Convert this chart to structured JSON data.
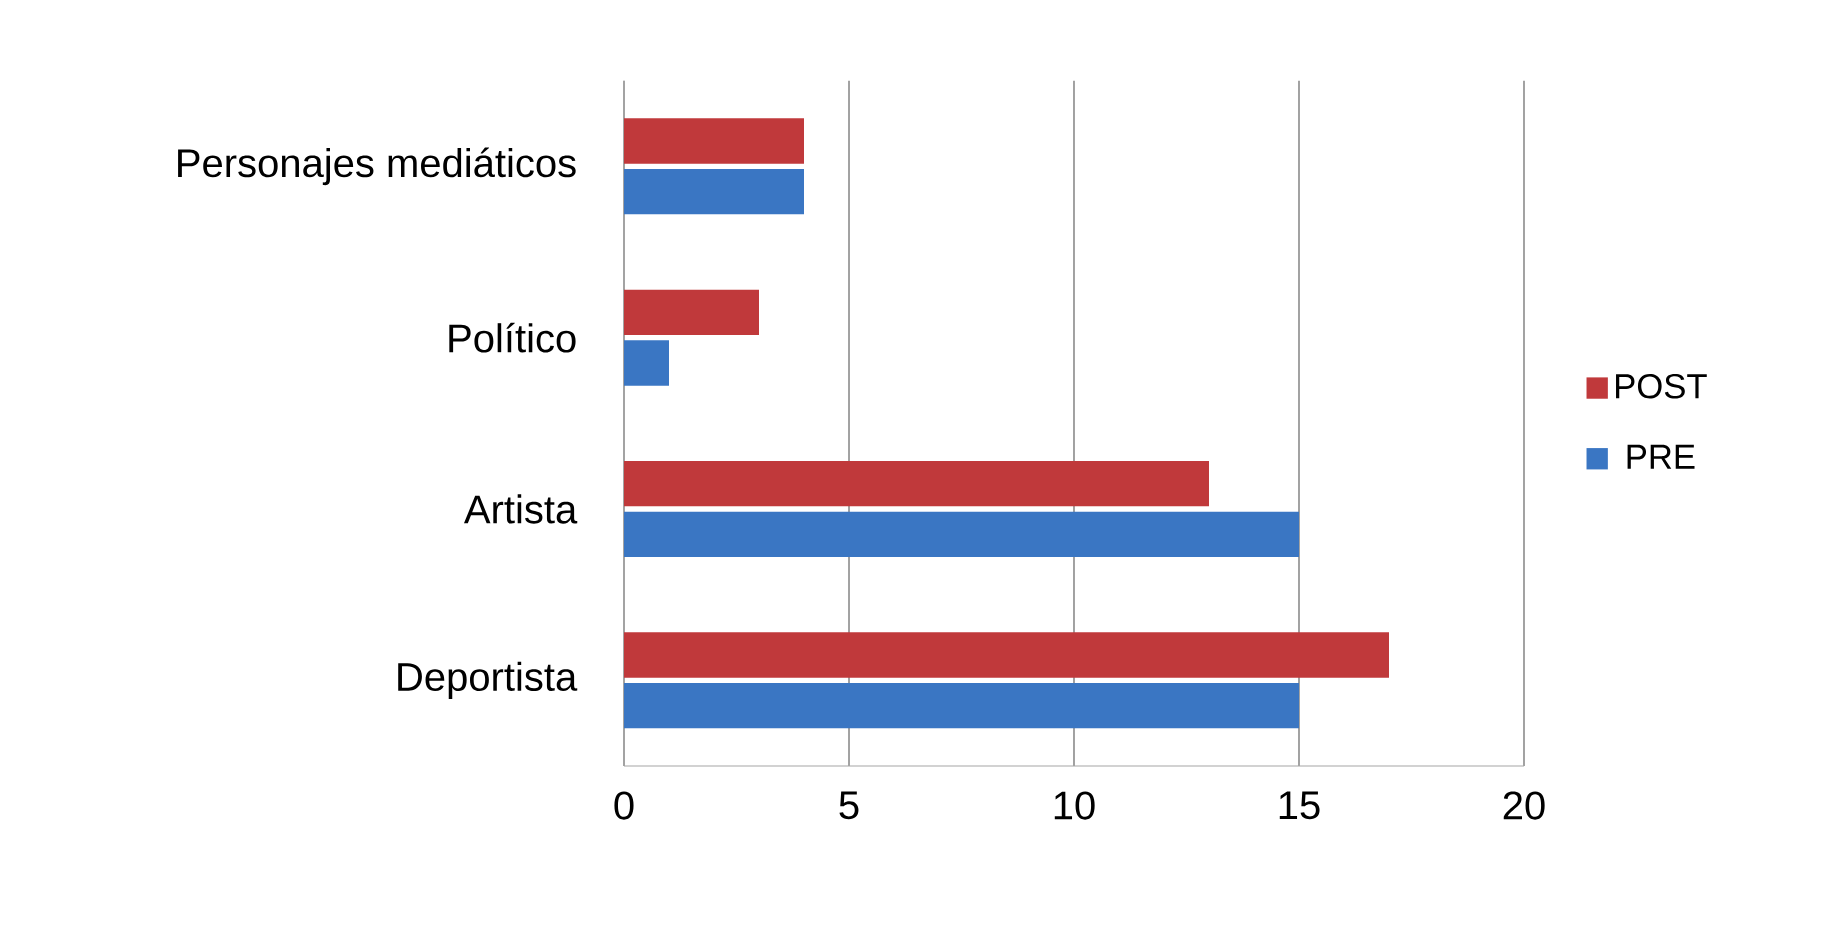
{
  "chart_data": {
    "type": "bar",
    "orientation": "horizontal",
    "categories": [
      "Personajes mediáticos",
      "Político",
      "Artista",
      "Deportista"
    ],
    "series": [
      {
        "name": "PRE",
        "color": "#3a76c3",
        "values": [
          4,
          1,
          15,
          15
        ]
      },
      {
        "name": "POST",
        "color": "#c0393b",
        "values": [
          4,
          3,
          13,
          17
        ]
      }
    ],
    "xlim": [
      0,
      20
    ],
    "xticks": [
      0,
      5,
      10,
      15,
      20
    ],
    "grid": "x",
    "legend": "right"
  }
}
